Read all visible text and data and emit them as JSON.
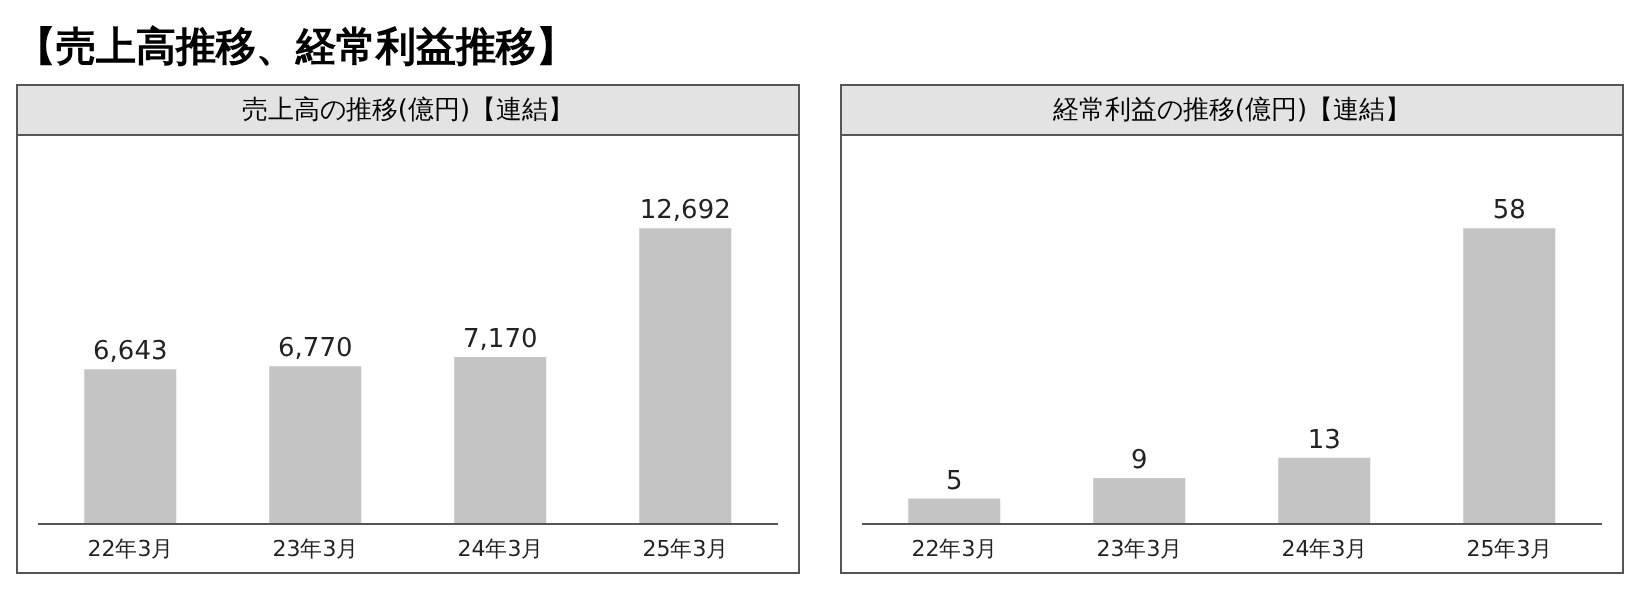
{
  "chart_data": [
    {
      "type": "bar",
      "title": "【売上高推移、経常利益推移】",
      "subtitle": "売上高の推移(億円)【連結】",
      "categories": [
        "22年3月",
        "23年3月",
        "24年3月",
        "25年3月"
      ],
      "values": [
        6643,
        6770,
        7170,
        12692
      ],
      "value_labels": [
        "6,643",
        "6,770",
        "7,170",
        "12,692"
      ],
      "color": "#c4c4c4"
    },
    {
      "type": "bar",
      "subtitle": "経常利益の推移(億円)【連結】",
      "categories": [
        "22年3月",
        "23年3月",
        "24年3月",
        "25年3月"
      ],
      "values": [
        5,
        9,
        13,
        58
      ],
      "color": "#c4c4c4",
      "data_labels": true
    }
  ]
}
